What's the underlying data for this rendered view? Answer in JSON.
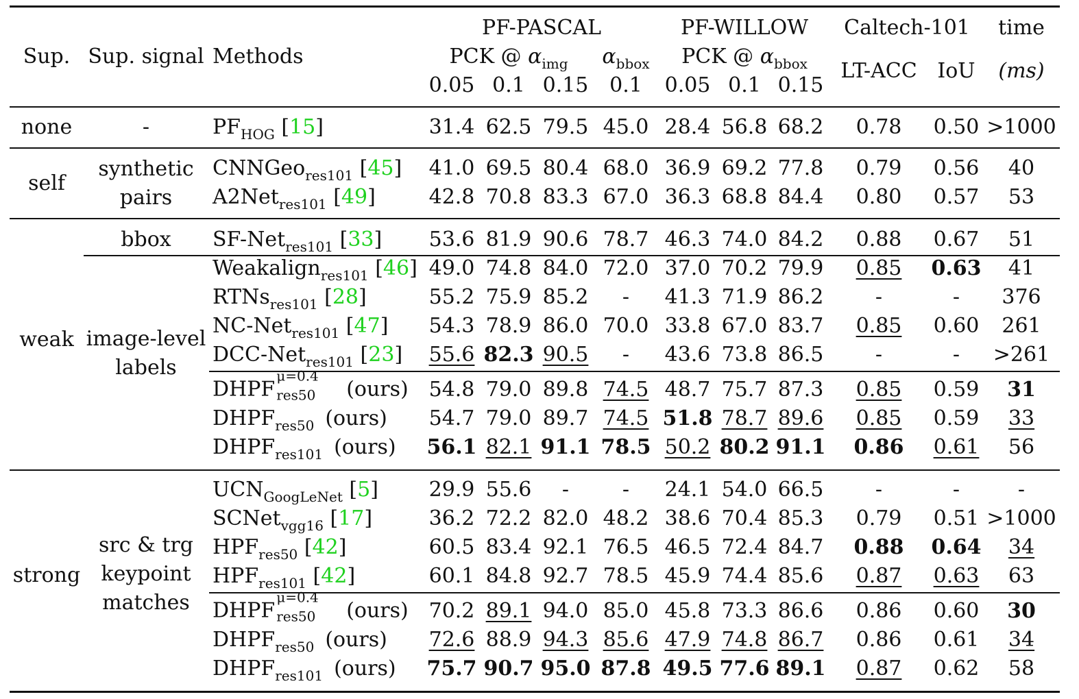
{
  "header": {
    "sup": "Sup.",
    "sup_signal": "Sup. signal",
    "methods": "Methods",
    "pf_pascal": "PF-PASCAL",
    "pf_willow": "PF-WILLOW",
    "caltech": "Caltech-101",
    "time": "time",
    "pck_at": "PCK @ ",
    "alpha": "α",
    "img": "img",
    "bbox": "bbox",
    "lt_acc": "LT-ACC",
    "iou": "IoU",
    "ms": "(ms)",
    "thresholds": [
      "0.05",
      "0.1",
      "0.15",
      "0.1",
      "0.05",
      "0.1",
      "0.15"
    ]
  },
  "groups": {
    "none": "none",
    "self": "self",
    "weak": "weak",
    "strong": "strong",
    "dash": "-",
    "synthetic_pairs": [
      "synthetic",
      "pairs"
    ],
    "bbox": "bbox",
    "image_level_labels": [
      "image-level",
      "labels"
    ],
    "src_trg": [
      "src & trg",
      "keypoint",
      "matches"
    ]
  },
  "rows": [
    {
      "method": "PF",
      "sub": "HOG",
      "cite": "15",
      "ours": "",
      "values": [
        "31.4",
        "62.5",
        "79.5",
        "45.0",
        "28.4",
        "56.8",
        "68.2",
        "0.78",
        "0.50",
        ">1000"
      ],
      "bold": [],
      "ul": []
    },
    {
      "method": "CNNGeo",
      "sub": "res101",
      "cite": "45",
      "ours": "",
      "values": [
        "41.0",
        "69.5",
        "80.4",
        "68.0",
        "36.9",
        "69.2",
        "77.8",
        "0.79",
        "0.56",
        "40"
      ],
      "bold": [],
      "ul": []
    },
    {
      "method": "A2Net",
      "sub": "res101",
      "cite": "49",
      "ours": "",
      "values": [
        "42.8",
        "70.8",
        "83.3",
        "67.0",
        "36.3",
        "68.8",
        "84.4",
        "0.80",
        "0.57",
        "53"
      ],
      "bold": [],
      "ul": []
    },
    {
      "method": "SF-Net",
      "sub": "res101",
      "cite": "33",
      "ours": "",
      "values": [
        "53.6",
        "81.9",
        "90.6",
        "78.7",
        "46.3",
        "74.0",
        "84.2",
        "0.88",
        "0.67",
        "51"
      ],
      "bold": [],
      "ul": []
    },
    {
      "method": "Weakalign",
      "sub": "res101",
      "cite": "46",
      "ours": "",
      "values": [
        "49.0",
        "74.8",
        "84.0",
        "72.0",
        "37.0",
        "70.2",
        "79.9",
        "0.85",
        "0.63",
        "41"
      ],
      "bold": [
        8
      ],
      "ul": [
        7
      ]
    },
    {
      "method": "RTNs",
      "sub": "res101",
      "cite": "28",
      "ours": "",
      "values": [
        "55.2",
        "75.9",
        "85.2",
        "-",
        "41.3",
        "71.9",
        "86.2",
        "-",
        "-",
        "376"
      ],
      "bold": [],
      "ul": []
    },
    {
      "method": "NC-Net",
      "sub": "res101",
      "cite": "47",
      "ours": "",
      "values": [
        "54.3",
        "78.9",
        "86.0",
        "70.0",
        "33.8",
        "67.0",
        "83.7",
        "0.85",
        "0.60",
        "261"
      ],
      "bold": [],
      "ul": [
        7
      ]
    },
    {
      "method": "DCC-Net",
      "sub": "res101",
      "cite": "23",
      "ours": "",
      "values": [
        "55.6",
        "82.3",
        "90.5",
        "-",
        "43.6",
        "73.8",
        "86.5",
        "-",
        "-",
        ">261"
      ],
      "bold": [
        1
      ],
      "ul": [
        0,
        2
      ]
    },
    {
      "method": "DHPF",
      "sub": "res50",
      "supmu": "μ=0.4",
      "cite": "",
      "ours": "(ours)",
      "values": [
        "54.8",
        "79.0",
        "89.8",
        "74.5",
        "48.7",
        "75.7",
        "87.3",
        "0.85",
        "0.59",
        "31"
      ],
      "bold": [
        9
      ],
      "ul": [
        3,
        7
      ]
    },
    {
      "method": "DHPF",
      "sub": "res50",
      "cite": "",
      "ours": "(ours)",
      "values": [
        "54.7",
        "79.0",
        "89.7",
        "74.5",
        "51.8",
        "78.7",
        "89.6",
        "0.85",
        "0.59",
        "33"
      ],
      "bold": [
        4
      ],
      "ul": [
        3,
        5,
        6,
        7,
        9
      ]
    },
    {
      "method": "DHPF",
      "sub": "res101",
      "cite": "",
      "ours": "(ours)",
      "values": [
        "56.1",
        "82.1",
        "91.1",
        "78.5",
        "50.2",
        "80.2",
        "91.1",
        "0.86",
        "0.61",
        "56"
      ],
      "bold": [
        0,
        2,
        3,
        5,
        6,
        7
      ],
      "ul": [
        1,
        4,
        8
      ]
    },
    {
      "method": "UCN",
      "sub": "GoogLeNet",
      "cite": "5",
      "ours": "",
      "values": [
        "29.9",
        "55.6",
        "-",
        "-",
        "24.1",
        "54.0",
        "66.5",
        "-",
        "-",
        "-"
      ],
      "bold": [],
      "ul": []
    },
    {
      "method": "SCNet",
      "sub": "vgg16",
      "cite": "17",
      "ours": "",
      "values": [
        "36.2",
        "72.2",
        "82.0",
        "48.2",
        "38.6",
        "70.4",
        "85.3",
        "0.79",
        "0.51",
        ">1000"
      ],
      "bold": [],
      "ul": []
    },
    {
      "method": "HPF",
      "sub": "res50",
      "cite": "42",
      "ours": "",
      "values": [
        "60.5",
        "83.4",
        "92.1",
        "76.5",
        "46.5",
        "72.4",
        "84.7",
        "0.88",
        "0.64",
        "34"
      ],
      "bold": [
        7,
        8
      ],
      "ul": [
        9
      ]
    },
    {
      "method": "HPF",
      "sub": "res101",
      "cite": "42",
      "ours": "",
      "values": [
        "60.1",
        "84.8",
        "92.7",
        "78.5",
        "45.9",
        "74.4",
        "85.6",
        "0.87",
        "0.63",
        "63"
      ],
      "bold": [],
      "ul": [
        7,
        8
      ]
    },
    {
      "method": "DHPF",
      "sub": "res50",
      "supmu": "μ=0.4",
      "cite": "",
      "ours": "(ours)",
      "values": [
        "70.2",
        "89.1",
        "94.0",
        "85.0",
        "45.8",
        "73.3",
        "86.6",
        "0.86",
        "0.60",
        "30"
      ],
      "bold": [
        9
      ],
      "ul": [
        1
      ]
    },
    {
      "method": "DHPF",
      "sub": "res50",
      "cite": "",
      "ours": "(ours)",
      "values": [
        "72.6",
        "88.9",
        "94.3",
        "85.6",
        "47.9",
        "74.8",
        "86.7",
        "0.86",
        "0.61",
        "34"
      ],
      "bold": [],
      "ul": [
        0,
        2,
        3,
        4,
        5,
        6,
        9
      ]
    },
    {
      "method": "DHPF",
      "sub": "res101",
      "cite": "",
      "ours": "(ours)",
      "values": [
        "75.7",
        "90.7",
        "95.0",
        "87.8",
        "49.5",
        "77.6",
        "89.1",
        "0.87",
        "0.62",
        "58"
      ],
      "bold": [
        0,
        1,
        2,
        3,
        4,
        5,
        6
      ],
      "ul": [
        7
      ]
    }
  ]
}
